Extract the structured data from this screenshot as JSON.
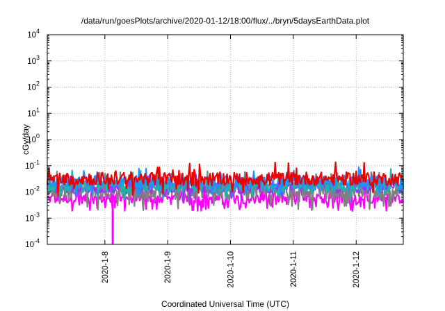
{
  "chart_data": {
    "type": "line",
    "title": "/data/run/goesPlots/archive/2020-01-12/18:00/flux/../bryn/5daysEarthData.plot",
    "xlabel": "Coordinated Universal Time (UTC)",
    "ylabel": "cGy/day",
    "yscale": "log",
    "ylim": [
      0.0001,
      10000
    ],
    "xlim": [
      "2020-01-07T02:00",
      "2020-01-12T18:00"
    ],
    "grid": true,
    "x_ticks": [
      "2020-1-8",
      "2020-1-9",
      "2020-1-10",
      "2020-1-11",
      "2020-1-12"
    ],
    "y_ticks": [
      {
        "base": "10",
        "exp": "-4",
        "value": 0.0001
      },
      {
        "base": "10",
        "exp": "-3",
        "value": 0.001
      },
      {
        "base": "10",
        "exp": "-2",
        "value": 0.01
      },
      {
        "base": "10",
        "exp": "-1",
        "value": 0.1
      },
      {
        "base": "10",
        "exp": "0",
        "value": 1
      },
      {
        "base": "10",
        "exp": "1",
        "value": 10
      },
      {
        "base": "10",
        "exp": "2",
        "value": 100
      },
      {
        "base": "10",
        "exp": "3",
        "value": 1000
      },
      {
        "base": "10",
        "exp": "4",
        "value": 10000
      }
    ],
    "series": [
      {
        "color": "#ee0000",
        "center": 0.032,
        "noise": 0.25,
        "spikes": 0.12
      },
      {
        "color": "#1e90ff",
        "center": 0.025,
        "noise": 0.22,
        "spikes": 0.1
      },
      {
        "color": "#20b2aa",
        "center": 0.017,
        "noise": 0.25,
        "spikes": 0.1
      },
      {
        "color": "#9b30ff",
        "center": 0.014,
        "noise": 0.2,
        "spikes": 0.1
      },
      {
        "color": "#808080",
        "center": 0.011,
        "noise": 0.3,
        "spikes": 0.2
      },
      {
        "color": "#ff00ff",
        "center": 0.0055,
        "noise": 0.18,
        "spikes": 0.3
      }
    ],
    "features": {
      "dropout": {
        "x": "2020-01-08T03:00",
        "low": 0.0001,
        "high": 0.0035,
        "color": "#ff00ff"
      }
    }
  }
}
